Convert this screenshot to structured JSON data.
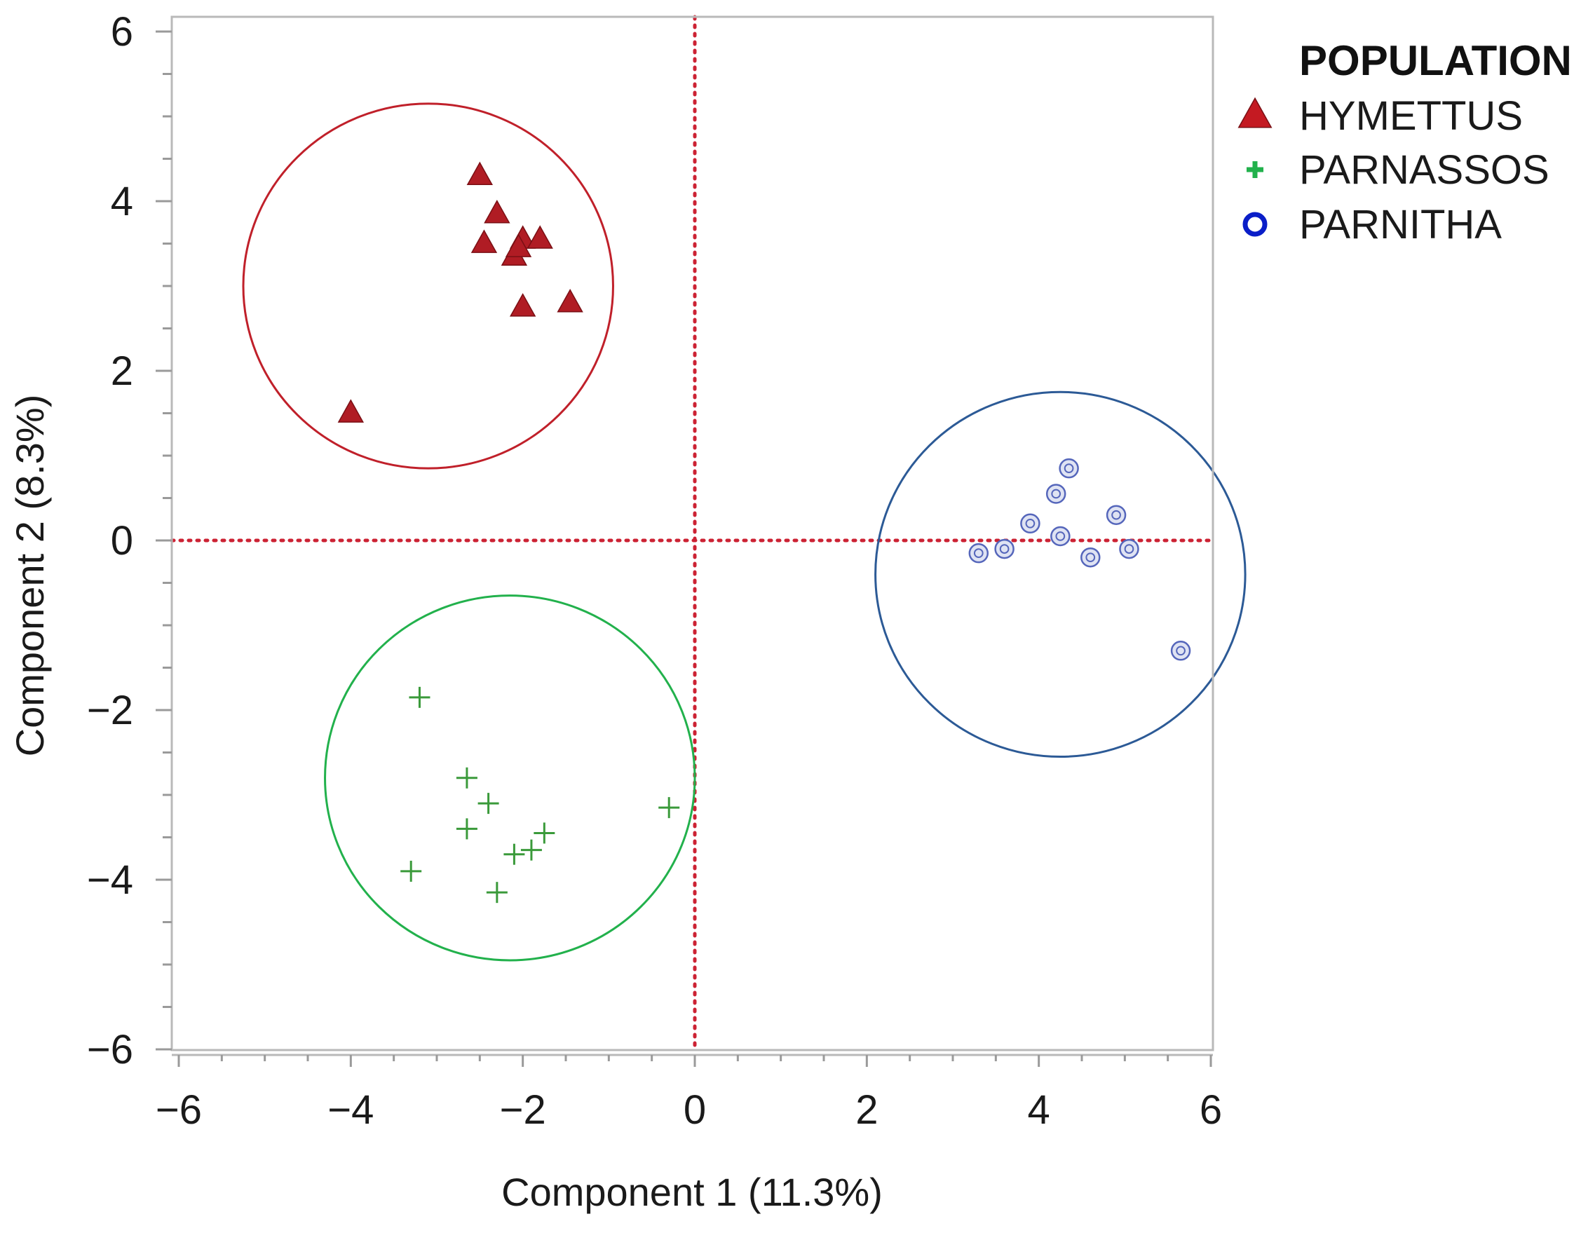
{
  "chart_data": {
    "type": "scatter",
    "title": "",
    "xlabel": "Component 1 (11.3%)",
    "ylabel": "Component 2 (8.3%)",
    "xlim": [
      -6,
      6
    ],
    "ylim": [
      -6,
      6
    ],
    "x_ticks": [
      -6,
      -4,
      -2,
      0,
      2,
      4,
      6
    ],
    "x_tick_labels": [
      "−6",
      "−4",
      "−2",
      "0",
      "2",
      "4",
      "6"
    ],
    "y_ticks": [
      6,
      4,
      2,
      0,
      -2,
      -4,
      -6
    ],
    "y_tick_labels": [
      "6",
      "4",
      "2",
      "0",
      "−2",
      "−4",
      "−6"
    ],
    "reference_lines": {
      "x": 0,
      "y": 0,
      "style": "dotted",
      "color": "#cc2233"
    },
    "grid": false,
    "legend": {
      "title": "POPULATION",
      "position": "top-right"
    },
    "series": [
      {
        "name": "HYMETTUS",
        "marker": "triangle",
        "color": "#b01c24",
        "ellipse_color": "#c0202a",
        "ellipse_center": [
          -3.1,
          3.0
        ],
        "ellipse_radius": [
          2.15,
          2.15
        ],
        "points": [
          [
            -2.5,
            4.3
          ],
          [
            -2.3,
            3.85
          ],
          [
            -2.45,
            3.5
          ],
          [
            -2.0,
            3.55
          ],
          [
            -1.8,
            3.55
          ],
          [
            -2.1,
            3.35
          ],
          [
            -2.05,
            3.45
          ],
          [
            -2.0,
            2.75
          ],
          [
            -1.45,
            2.8
          ],
          [
            -4.0,
            1.5
          ]
        ]
      },
      {
        "name": "PARNASSOS",
        "marker": "plus",
        "color": "#3a9a3a",
        "legend_color": "#22b14c",
        "ellipse_color": "#22b14c",
        "ellipse_center": [
          -2.15,
          -2.8
        ],
        "ellipse_radius": [
          2.15,
          2.15
        ],
        "points": [
          [
            -3.2,
            -1.85
          ],
          [
            -2.65,
            -2.8
          ],
          [
            -2.4,
            -3.1
          ],
          [
            -2.65,
            -3.4
          ],
          [
            -2.1,
            -3.7
          ],
          [
            -1.9,
            -3.65
          ],
          [
            -1.75,
            -3.45
          ],
          [
            -3.3,
            -3.9
          ],
          [
            -2.3,
            -4.15
          ],
          [
            -0.3,
            -3.15
          ]
        ]
      },
      {
        "name": "PARNITHA",
        "marker": "circle",
        "color": "#5566bb",
        "legend_color": "#0a1ec8",
        "ellipse_color": "#2c5a96",
        "ellipse_center": [
          4.25,
          -0.4
        ],
        "ellipse_radius": [
          2.15,
          2.15
        ],
        "points": [
          [
            4.35,
            0.85
          ],
          [
            4.2,
            0.55
          ],
          [
            3.9,
            0.2
          ],
          [
            4.25,
            0.05
          ],
          [
            4.9,
            0.3
          ],
          [
            3.6,
            -0.1
          ],
          [
            3.3,
            -0.15
          ],
          [
            4.6,
            -0.2
          ],
          [
            5.05,
            -0.1
          ],
          [
            5.65,
            -1.3
          ]
        ]
      }
    ]
  }
}
